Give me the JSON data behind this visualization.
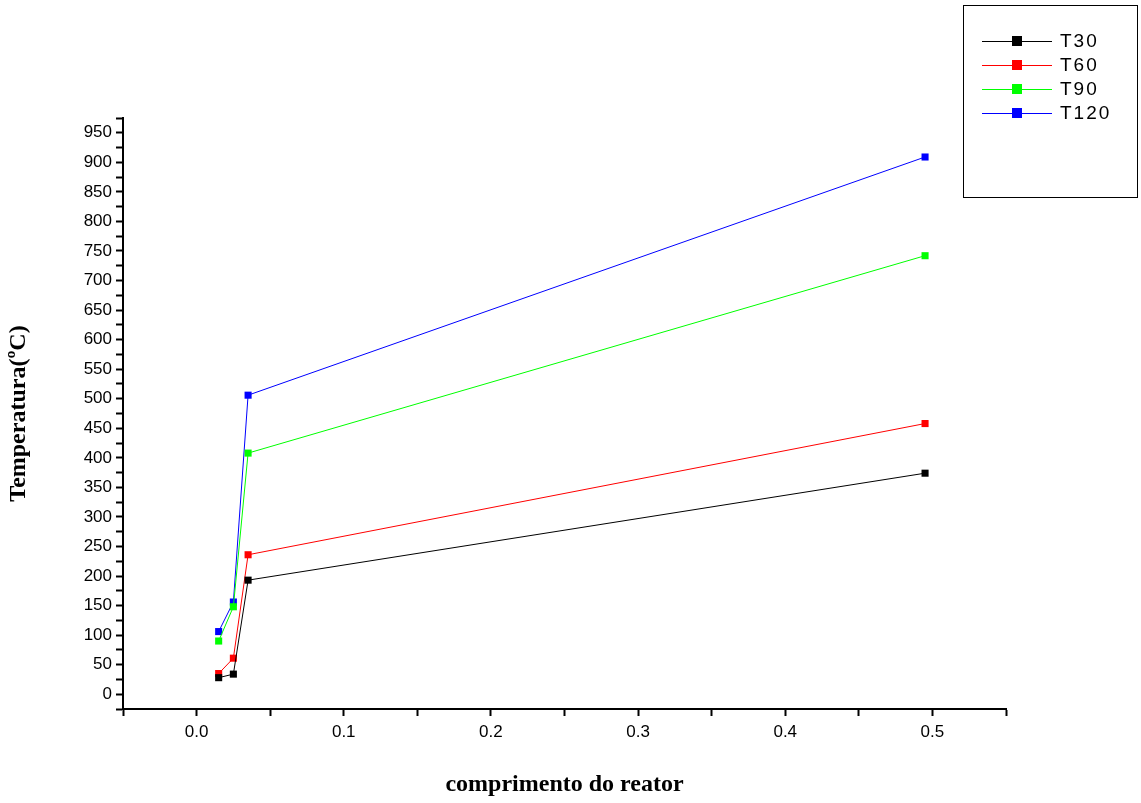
{
  "chart_data": {
    "type": "line",
    "xlabel": "comprimento do reator",
    "ylabel": "Temperatura(ºC)",
    "x": [
      0.015,
      0.025,
      0.035,
      0.495
    ],
    "series": [
      {
        "name": "T30",
        "color": "#000000",
        "values": [
          28,
          34,
          193,
          374
        ]
      },
      {
        "name": "T60",
        "color": "#ff0000",
        "values": [
          35,
          61,
          236,
          458
        ]
      },
      {
        "name": "T90",
        "color": "#00ff00",
        "values": [
          90,
          148,
          408,
          742
        ]
      },
      {
        "name": "T120",
        "color": "#0000ff",
        "values": [
          106,
          156,
          506,
          909
        ]
      }
    ],
    "xlim": [
      -0.05,
      0.55
    ],
    "xticks": [
      {
        "value": -0.05,
        "label": null
      },
      {
        "value": 0,
        "label": "0.0"
      },
      {
        "value": 0.05,
        "label": null
      },
      0.1,
      {
        "value": 0.15,
        "label": null
      },
      0.2,
      {
        "value": 0.25,
        "label": null
      },
      0.3,
      {
        "value": 0.35,
        "label": null
      },
      0.4,
      {
        "value": 0.45,
        "label": null
      },
      0.5,
      {
        "value": 0.55,
        "label": null
      }
    ],
    "ylim": [
      -25,
      975
    ],
    "yticks": [
      {
        "value": -25,
        "label": null
      },
      0,
      {
        "value": 25,
        "label": null
      },
      50,
      {
        "value": 75,
        "label": null
      },
      100,
      {
        "value": 125,
        "label": null
      },
      150,
      {
        "value": 175,
        "label": null
      },
      200,
      {
        "value": 225,
        "label": null
      },
      250,
      {
        "value": 275,
        "label": null
      },
      300,
      {
        "value": 325,
        "label": null
      },
      350,
      {
        "value": 375,
        "label": null
      },
      400,
      {
        "value": 425,
        "label": null
      },
      450,
      {
        "value": 475,
        "label": null
      },
      500,
      {
        "value": 525,
        "label": null
      },
      550,
      {
        "value": 575,
        "label": null
      },
      600,
      {
        "value": 625,
        "label": null
      },
      650,
      {
        "value": 675,
        "label": null
      },
      700,
      {
        "value": 725,
        "label": null
      },
      750,
      {
        "value": 775,
        "label": null
      },
      800,
      {
        "value": 825,
        "label": null
      },
      850,
      {
        "value": 875,
        "label": null
      },
      900,
      {
        "value": 925,
        "label": null
      },
      950,
      {
        "value": 975,
        "label": null
      }
    ],
    "grid": false,
    "legend": "top right",
    "marker": "square",
    "line_style": "solid"
  }
}
